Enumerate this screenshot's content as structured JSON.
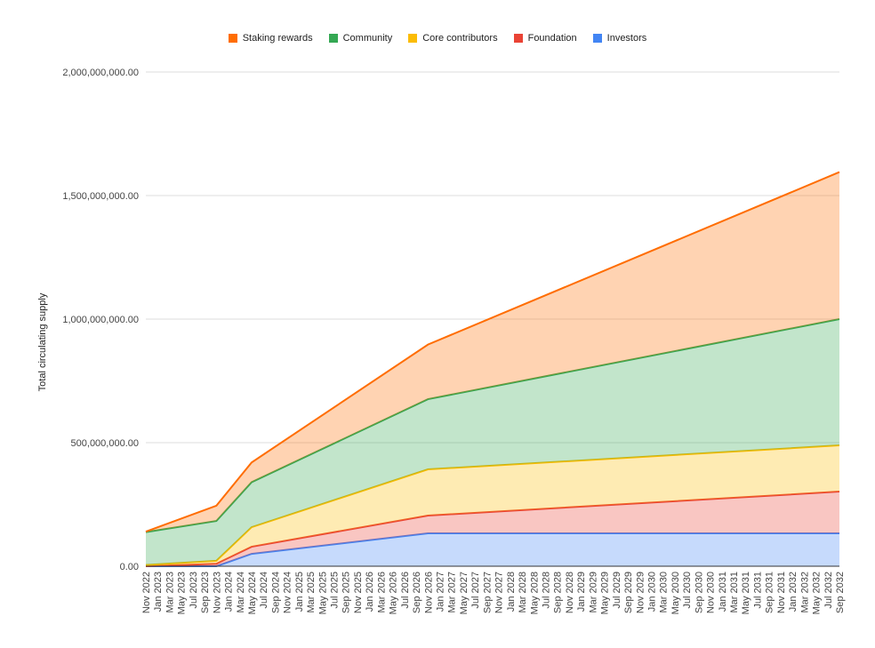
{
  "chart_data": {
    "type": "area",
    "stacked": true,
    "title": "",
    "xlabel": "",
    "ylabel": "Total circulating supply",
    "ylim": [
      0,
      2000000000
    ],
    "yticks": [
      "0.00",
      "500,000,000.00",
      "1,000,000,000.00",
      "1,500,000,000.00",
      "2,000,000,000.00"
    ],
    "ytick_values": [
      0,
      500000000,
      1000000000,
      1500000000,
      2000000000
    ],
    "grid": true,
    "legend_position": "top",
    "x_ticks": [
      "Nov 2022",
      "Jan 2023",
      "Mar 2023",
      "May 2023",
      "Jul 2023",
      "Sep 2023",
      "Nov 2023",
      "Jan 2024",
      "Mar 2024",
      "May 2024",
      "Jul 2024",
      "Sep 2024",
      "Nov 2024",
      "Jan 2025",
      "Mar 2025",
      "May 2025",
      "Jul 2025",
      "Sep 2025",
      "Nov 2025",
      "Jan 2026",
      "Mar 2026",
      "May 2026",
      "Jul 2026",
      "Sep 2026",
      "Nov 2026",
      "Jan 2027",
      "Mar 2027",
      "May 2027",
      "Jul 2027",
      "Sep 2027",
      "Nov 2027",
      "Jan 2028",
      "Mar 2028",
      "May 2028",
      "Jul 2028",
      "Sep 2028",
      "Nov 2028",
      "Jan 2029",
      "Mar 2029",
      "May 2029",
      "Jul 2029",
      "Sep 2029",
      "Nov 2029",
      "Jan 2030",
      "Mar 2030",
      "May 2030",
      "Jul 2030",
      "Sep 2030",
      "Nov 2030",
      "Jan 2031",
      "Mar 2031",
      "May 2031",
      "Jul 2031",
      "Sep 2031",
      "Nov 2031",
      "Jan 2032",
      "Mar 2032",
      "May 2032",
      "Jul 2032",
      "Sep 2032"
    ],
    "x": [
      "2022-11",
      "2023-11",
      "2024-05",
      "2026-11",
      "2032-09"
    ],
    "series": [
      {
        "name": "Investors",
        "color": "#4285f4",
        "values": [
          0,
          0,
          50000000,
          133000000,
          133000000
        ]
      },
      {
        "name": "Foundation",
        "color": "#ea4335",
        "values": [
          0,
          10000000,
          29000000,
          72000000,
          169000000
        ]
      },
      {
        "name": "Core contributors",
        "color": "#fbbc04",
        "values": [
          5000000,
          12000000,
          79000000,
          187000000,
          187000000
        ]
      },
      {
        "name": "Community",
        "color": "#34a853",
        "values": [
          133000000,
          161000000,
          182000000,
          284000000,
          511000000
        ]
      },
      {
        "name": "Staking rewards",
        "color": "#ff6d01",
        "values": [
          2000000,
          62000000,
          80000000,
          221000000,
          595000000
        ]
      }
    ],
    "legend_order": [
      "Staking rewards",
      "Community",
      "Core contributors",
      "Foundation",
      "Investors"
    ]
  }
}
